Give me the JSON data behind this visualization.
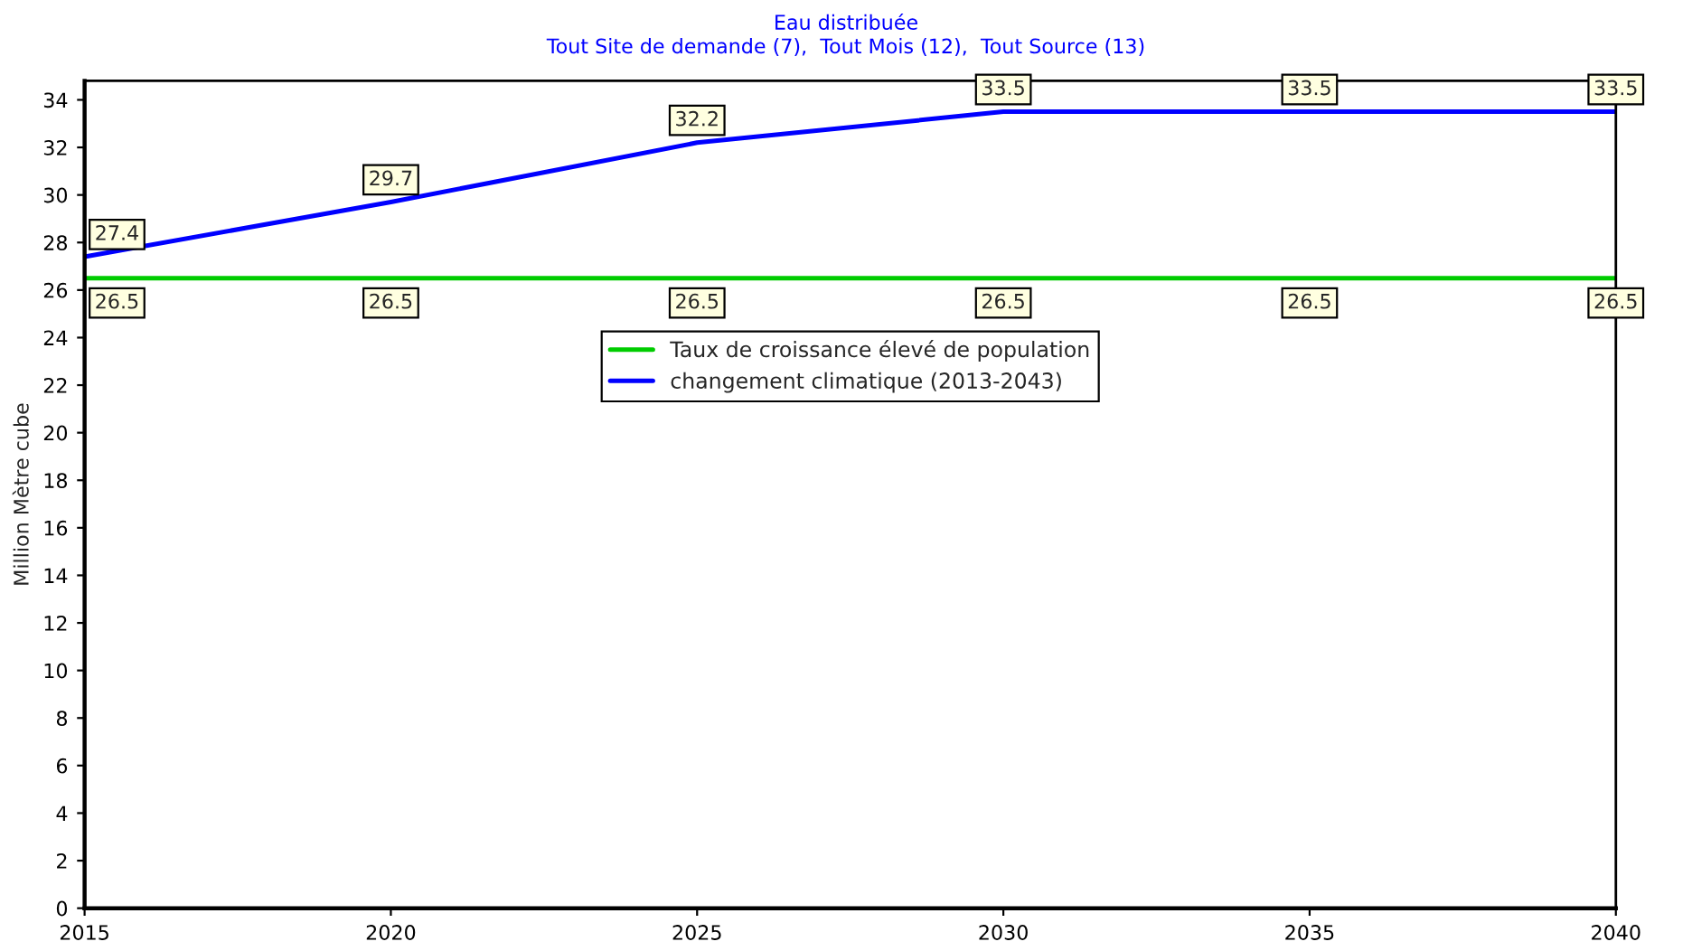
{
  "chart_data": {
    "type": "line",
    "title": "Eau distribuée",
    "subtitle": "Tout Site de demande (7),  Tout Mois (12),  Tout Source (13)",
    "ylabel": "Million Mètre cube",
    "x": [
      2015,
      2020,
      2025,
      2030,
      2035,
      2040
    ],
    "series": [
      {
        "name": "Taux de croissance élevé de population",
        "color": "#00cc00",
        "values": [
          26.5,
          26.5,
          26.5,
          26.5,
          26.5,
          26.5
        ]
      },
      {
        "name": "changement climatique (2013-2043)",
        "color": "#0000ff",
        "values": [
          27.4,
          29.7,
          32.2,
          33.5,
          33.5,
          33.5
        ]
      }
    ],
    "xlim": [
      2015,
      2040
    ],
    "xticks": [
      2015,
      2020,
      2025,
      2030,
      2035,
      2040
    ],
    "ylim": [
      0,
      34.8
    ],
    "yticks": [
      0,
      2,
      4,
      6,
      8,
      10,
      12,
      14,
      16,
      18,
      20,
      22,
      24,
      26,
      28,
      30,
      32,
      34
    ],
    "data_labels": true,
    "legend": "top",
    "line_style": "solid"
  }
}
